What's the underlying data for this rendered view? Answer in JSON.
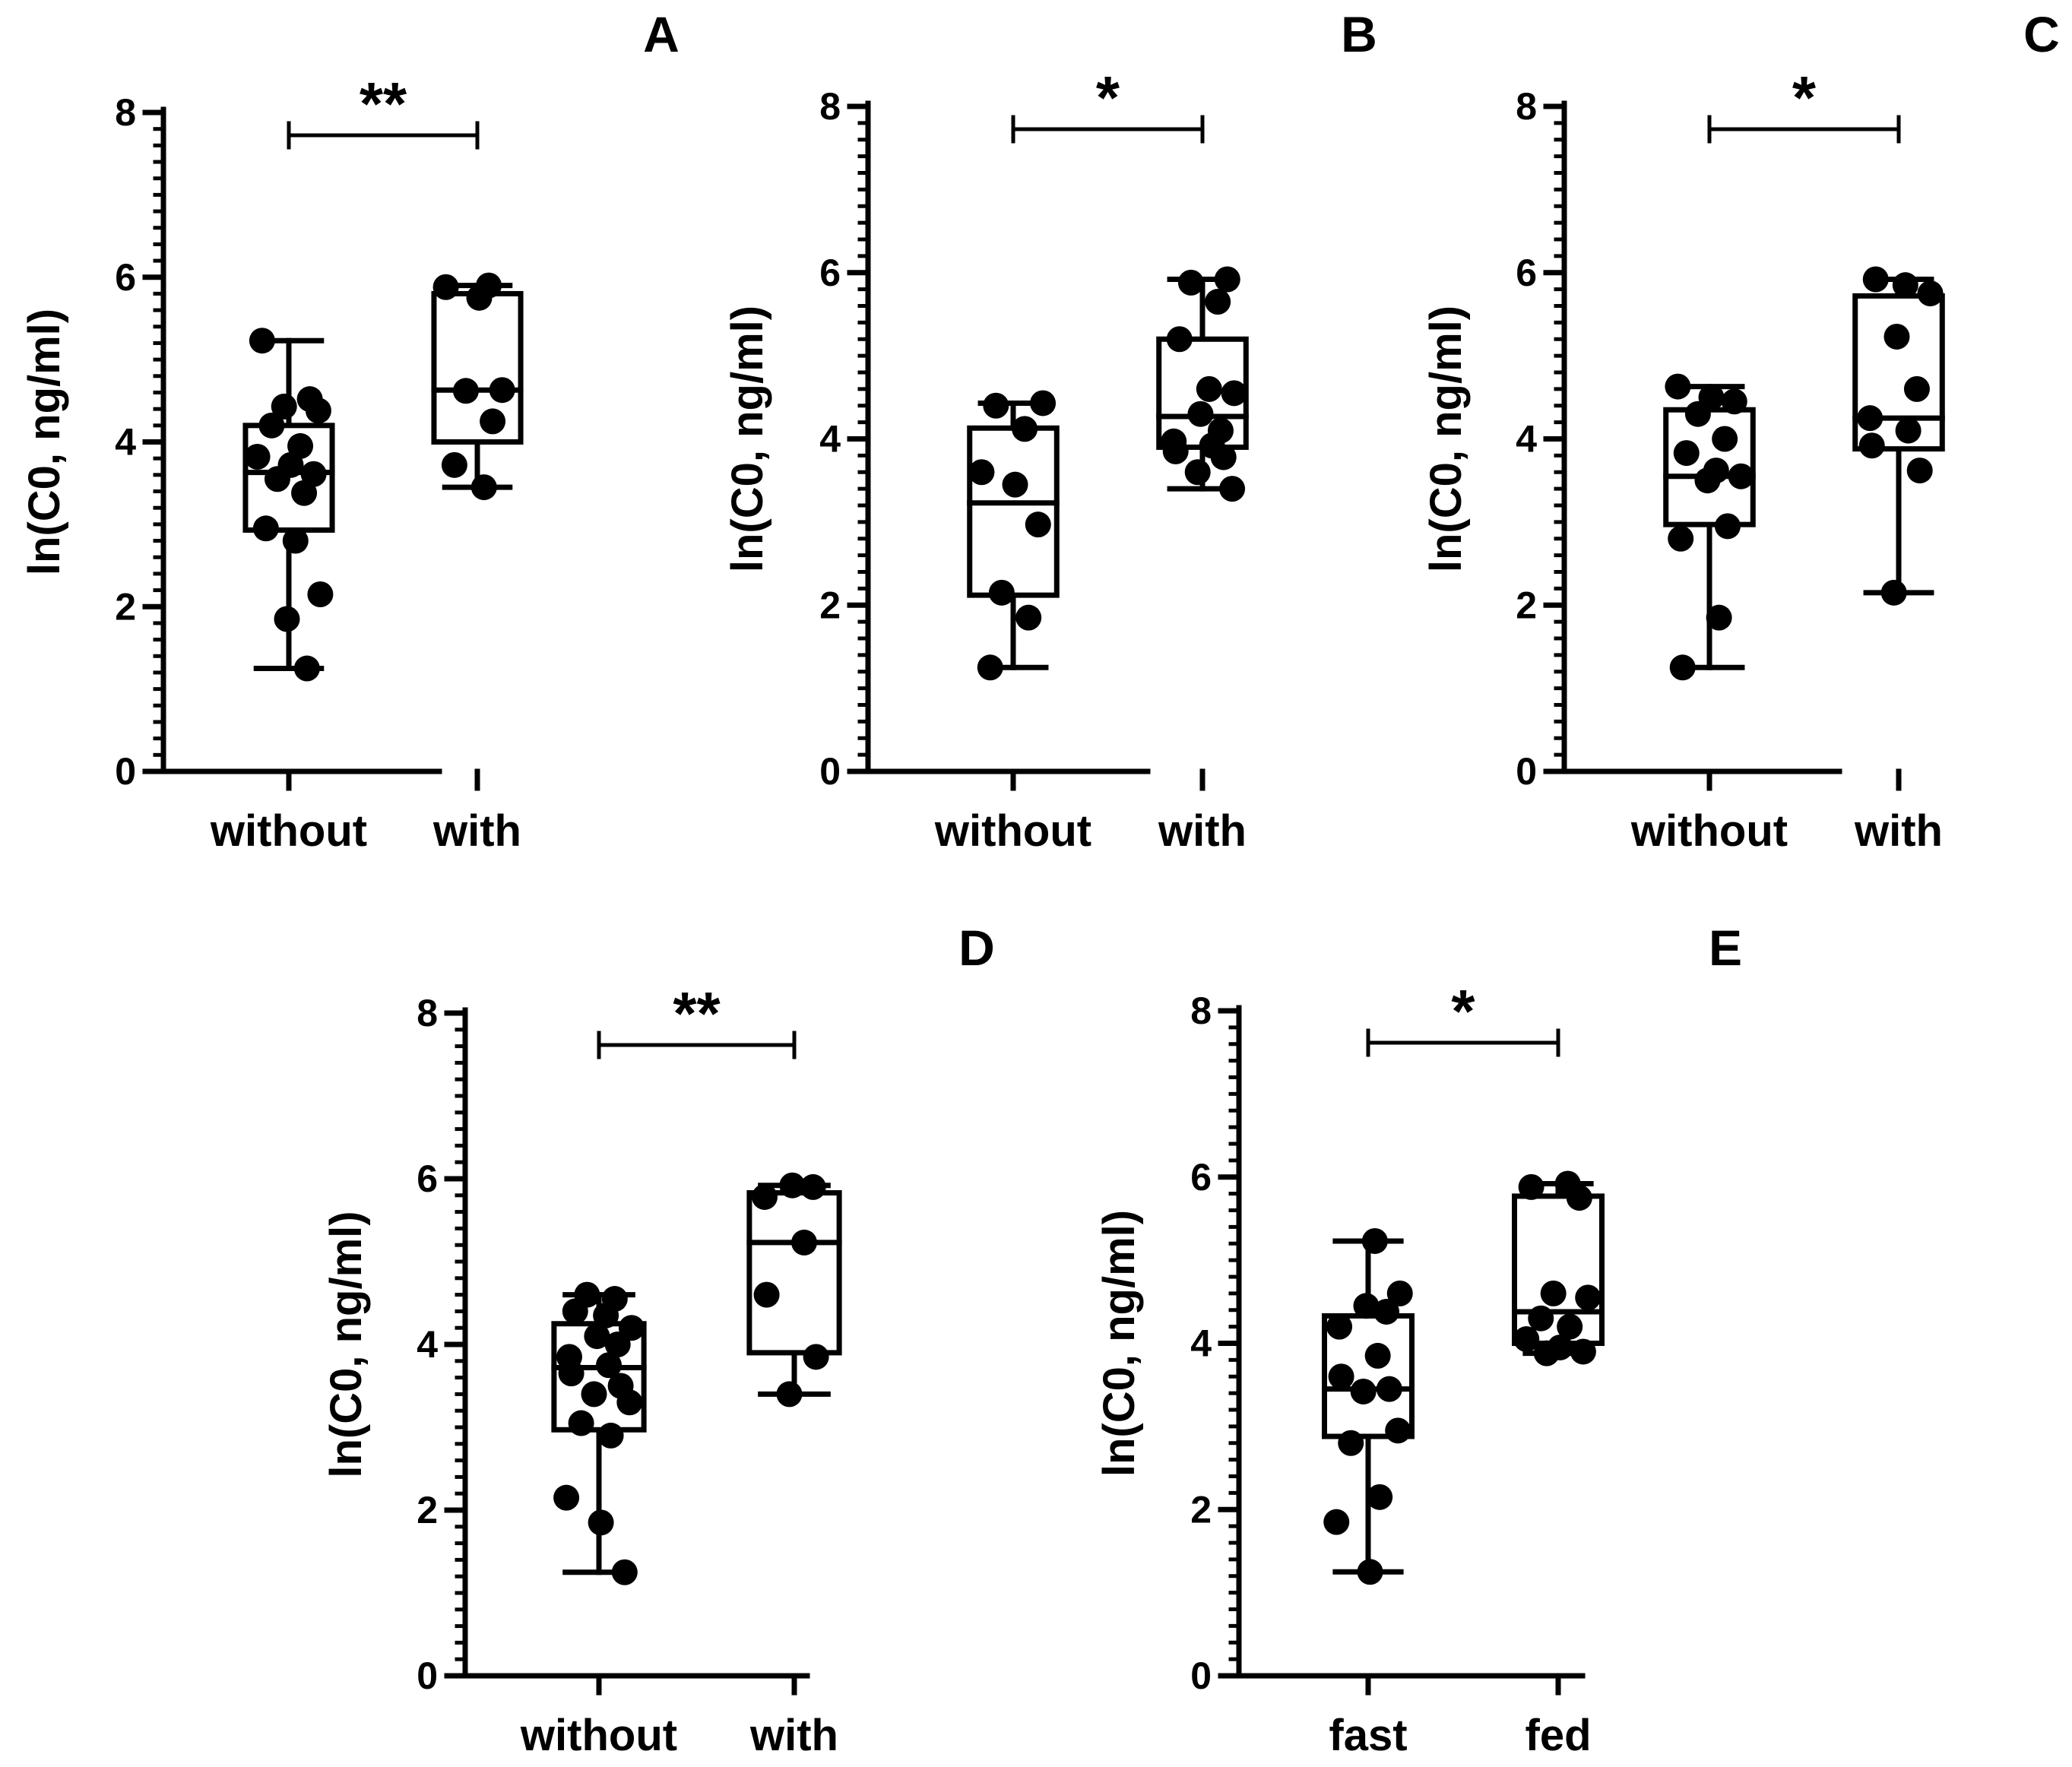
{
  "figure": {
    "style": {
      "ink": "#000000",
      "background": "#ffffff",
      "box_fill": "#ffffff"
    }
  },
  "chart_data": [
    {
      "panel": "A",
      "type": "box",
      "ylabel": "ln(C0, ng/ml)",
      "xlabel": "",
      "ylim": [
        0,
        8
      ],
      "yticks": [
        0,
        2,
        4,
        6,
        8
      ],
      "minor_tick_step": 0.2,
      "categories": [
        "without",
        "with"
      ],
      "boxes": [
        {
          "min": 1.25,
          "q1": 2.93,
          "median": 3.63,
          "q3": 4.2,
          "max": 5.23,
          "points": [
            5.23,
            4.52,
            4.43,
            4.38,
            4.2,
            3.95,
            3.82,
            3.72,
            3.61,
            3.55,
            3.38,
            2.95,
            2.8,
            2.15,
            1.85,
            1.25
          ]
        },
        {
          "min": 3.45,
          "q1": 4.0,
          "median": 4.63,
          "q3": 5.8,
          "max": 5.9,
          "points": [
            5.9,
            5.88,
            5.75,
            4.63,
            4.62,
            4.25,
            3.72,
            3.45
          ]
        }
      ],
      "significance": {
        "from": 0,
        "to": 1,
        "label": "**"
      }
    },
    {
      "panel": "B",
      "type": "box",
      "ylabel": "ln(C0, ng/ml)",
      "xlabel": "",
      "ylim": [
        0,
        8
      ],
      "yticks": [
        0,
        2,
        4,
        6,
        8
      ],
      "minor_tick_step": 0.2,
      "categories": [
        "without",
        "with"
      ],
      "boxes": [
        {
          "min": 1.25,
          "q1": 2.12,
          "median": 3.23,
          "q3": 4.13,
          "max": 4.43,
          "points": [
            4.43,
            4.4,
            4.12,
            3.6,
            3.45,
            2.97,
            2.15,
            1.85,
            1.25
          ]
        },
        {
          "min": 3.4,
          "q1": 3.9,
          "median": 4.27,
          "q3": 5.2,
          "max": 5.92,
          "points": [
            5.92,
            5.88,
            5.65,
            5.2,
            4.6,
            4.55,
            4.3,
            4.1,
            3.97,
            3.92,
            3.85,
            3.78,
            3.6,
            3.4
          ]
        }
      ],
      "significance": {
        "from": 0,
        "to": 1,
        "label": "*"
      }
    },
    {
      "panel": "C",
      "type": "box",
      "ylabel": "ln(C0, ng/ml)",
      "xlabel": "",
      "ylim": [
        0,
        8
      ],
      "yticks": [
        0,
        2,
        4,
        6,
        8
      ],
      "minor_tick_step": 0.2,
      "categories": [
        "without",
        "with"
      ],
      "boxes": [
        {
          "min": 1.25,
          "q1": 2.97,
          "median": 3.55,
          "q3": 4.35,
          "max": 4.63,
          "points": [
            4.63,
            4.5,
            4.45,
            4.3,
            4.0,
            3.83,
            3.62,
            3.55,
            3.5,
            2.95,
            2.8,
            1.85,
            1.25
          ]
        },
        {
          "min": 2.15,
          "q1": 3.88,
          "median": 4.25,
          "q3": 5.72,
          "max": 5.92,
          "points": [
            5.92,
            5.85,
            5.75,
            5.23,
            4.6,
            4.25,
            4.1,
            3.92,
            3.62,
            2.15
          ]
        }
      ],
      "significance": {
        "from": 0,
        "to": 1,
        "label": "*"
      }
    },
    {
      "panel": "D",
      "type": "box",
      "ylabel": "ln(C0, ng/ml)",
      "xlabel": "",
      "ylim": [
        0,
        8
      ],
      "yticks": [
        0,
        2,
        4,
        6,
        8
      ],
      "minor_tick_step": 0.2,
      "categories": [
        "without",
        "with"
      ],
      "boxes": [
        {
          "min": 1.25,
          "q1": 2.97,
          "median": 3.72,
          "q3": 4.25,
          "max": 4.6,
          "points": [
            4.6,
            4.55,
            4.4,
            4.35,
            4.2,
            4.1,
            4.0,
            3.85,
            3.75,
            3.65,
            3.5,
            3.4,
            3.3,
            3.05,
            2.9,
            2.15,
            1.85,
            1.25
          ]
        },
        {
          "min": 3.4,
          "q1": 3.9,
          "median": 5.23,
          "q3": 5.83,
          "max": 5.92,
          "points": [
            5.92,
            5.9,
            5.78,
            5.23,
            4.6,
            3.85,
            3.4
          ]
        }
      ],
      "significance": {
        "from": 0,
        "to": 1,
        "label": "**"
      }
    },
    {
      "panel": "E",
      "type": "box",
      "ylabel": "ln(C0, ng/ml)",
      "xlabel": "",
      "ylim": [
        0,
        8
      ],
      "yticks": [
        0,
        2,
        4,
        6,
        8
      ],
      "minor_tick_step": 0.2,
      "categories": [
        "fast",
        "fed"
      ],
      "boxes": [
        {
          "min": 1.25,
          "q1": 2.88,
          "median": 3.45,
          "q3": 4.33,
          "max": 5.23,
          "points": [
            5.23,
            4.6,
            4.45,
            4.38,
            4.2,
            3.85,
            3.6,
            3.45,
            3.42,
            2.95,
            2.8,
            2.15,
            1.85,
            1.25
          ]
        },
        {
          "min": 3.88,
          "q1": 4.0,
          "median": 4.38,
          "q3": 5.77,
          "max": 5.92,
          "points": [
            5.92,
            5.88,
            5.75,
            4.6,
            4.55,
            4.3,
            4.2,
            4.05,
            3.95,
            3.9,
            3.88
          ]
        }
      ],
      "significance": {
        "from": 0,
        "to": 1,
        "label": "*"
      }
    }
  ]
}
